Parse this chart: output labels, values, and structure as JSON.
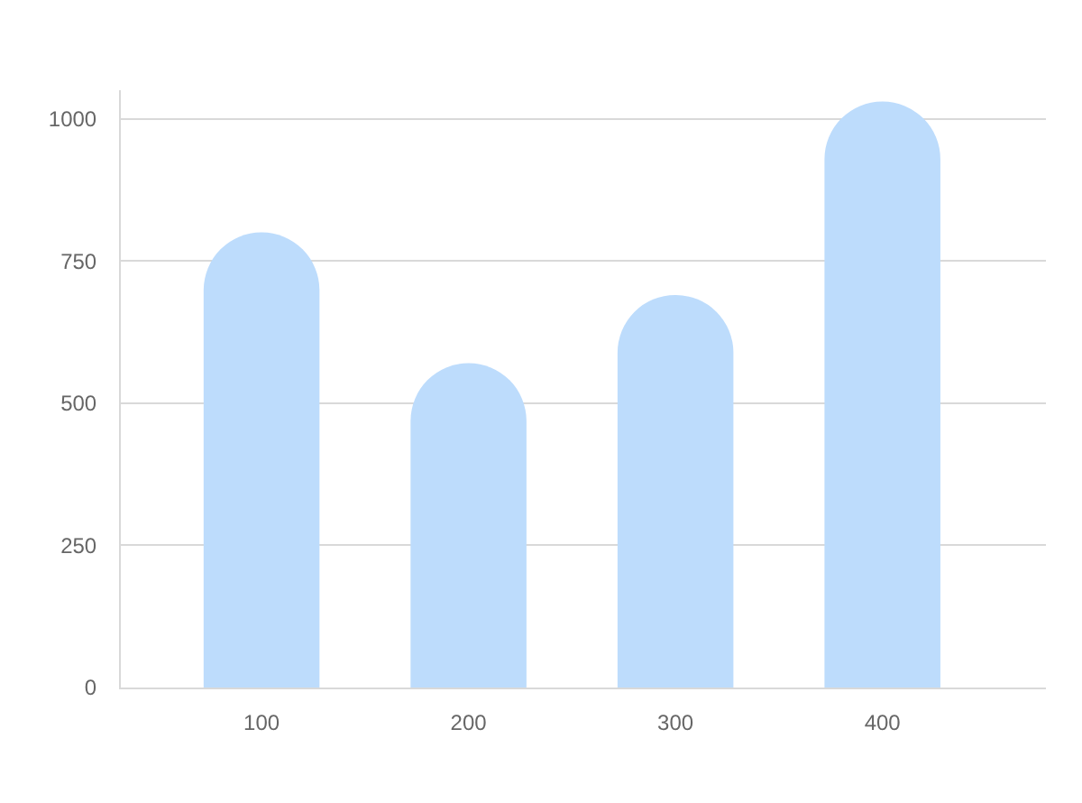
{
  "chart_data": {
    "type": "bar",
    "categories": [
      "100",
      "200",
      "300",
      "400"
    ],
    "values": [
      800,
      570,
      690,
      1030
    ],
    "color": "#bddcfc",
    "ylim": [
      0,
      1050
    ],
    "yticks": [
      0,
      250,
      500,
      750,
      1000
    ],
    "grid": "y"
  }
}
